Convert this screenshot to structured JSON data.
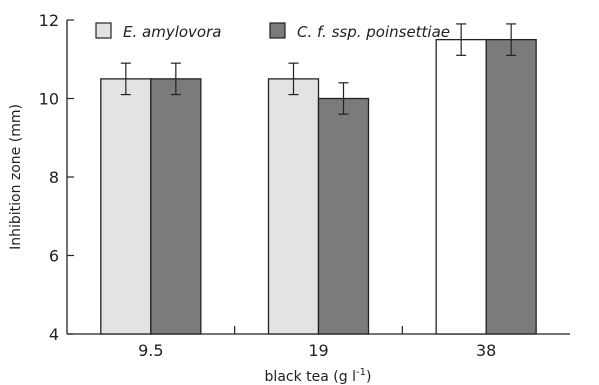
{
  "chart_data": {
    "type": "bar",
    "categories": [
      "9.5",
      "19",
      "38"
    ],
    "xlabel": "black tea (g l",
    "xlabel_sup": "-1",
    "xlabel_end": ")",
    "ylabel": "Inhibition zone (mm)",
    "ylim": [
      4,
      12
    ],
    "yticks": [
      "4",
      "6",
      "8",
      "10",
      "12"
    ],
    "grid": false,
    "legend_position": "top-left",
    "series": [
      {
        "name": "E. amylovora",
        "values": [
          10.5,
          10.5,
          11.5
        ],
        "errors": [
          0.4,
          0.4,
          0.4
        ],
        "colors": [
          "#e3e3e3",
          "#e3e3e3",
          "#ffffff"
        ]
      },
      {
        "name": "C. f. ssp. poinsettiae",
        "values": [
          10.5,
          10.0,
          11.5
        ],
        "errors": [
          0.4,
          0.4,
          0.4
        ],
        "colors": [
          "#7b7b7b",
          "#7b7b7b",
          "#7b7b7b"
        ]
      }
    ]
  }
}
